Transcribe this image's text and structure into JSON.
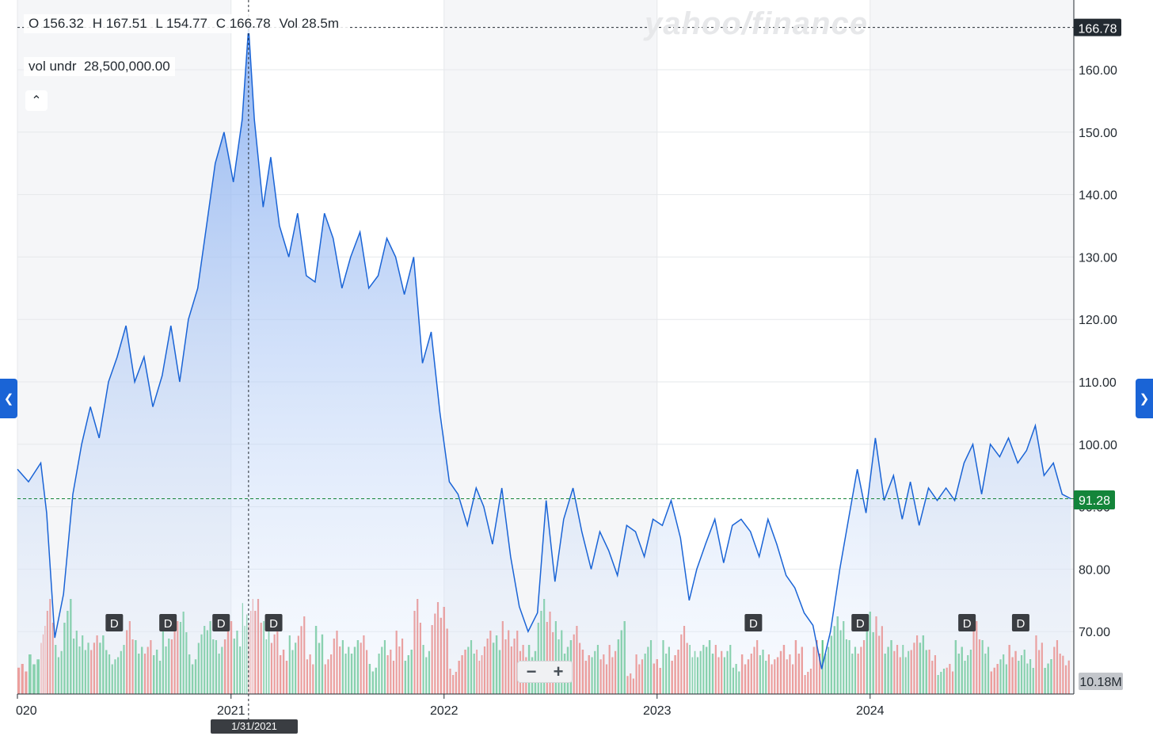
{
  "ohlc": {
    "open": "O 156.32",
    "high": "H 167.51",
    "low": "L 154.77",
    "close": "C 166.78",
    "volume": "Vol 28.5m"
  },
  "vol_indicator": {
    "label": "vol undr",
    "value": "28,500,000.00"
  },
  "collapse_icon": "chevron-up-icon",
  "watermark": "yahoo/finance",
  "nav": {
    "left_icon": "chevron-left-icon",
    "right_icon": "chevron-right-icon"
  },
  "zoom": {
    "minus": "−",
    "plus": "+"
  },
  "crosshair": {
    "date_label": "1/31/2021",
    "price_label": "166.78"
  },
  "colors": {
    "line": "#1a64d6",
    "up_volume": "#5ec48a",
    "down_volume": "#ee7a72",
    "current_price_badge": "#14853a",
    "crosshair_badge": "#232a31"
  },
  "chart_data": {
    "type": "area",
    "y_axis_ticks": [
      "70.00",
      "80.00",
      "90.00",
      "100.00",
      "110.00",
      "120.00",
      "130.00",
      "140.00",
      "150.00",
      "160.00"
    ],
    "ylim": [
      60,
      171
    ],
    "x_axis_ticks": [
      "020",
      "2021",
      "2022",
      "2023",
      "2024"
    ],
    "current_price": "91.28",
    "volume_label": "10.18M",
    "dividend_markers": [
      "D",
      "D",
      "D",
      "D",
      "D",
      "D",
      "D",
      "D"
    ],
    "dividend_dates": [
      "2020-06-15",
      "2020-09-15",
      "2020-12-15",
      "2021-03-15",
      "2023-06-15",
      "2023-12-15",
      "2024-06-15",
      "2024-09-15"
    ],
    "series": [
      {
        "dates": [
          "2020-01-01",
          "2020-01-20",
          "2020-02-10",
          "2020-02-20",
          "2020-03-05",
          "2020-03-20",
          "2020-04-05",
          "2020-04-20",
          "2020-05-05",
          "2020-05-20",
          "2020-06-05",
          "2020-06-20",
          "2020-07-05",
          "2020-07-20",
          "2020-08-05",
          "2020-08-20",
          "2020-09-05",
          "2020-09-20",
          "2020-10-05",
          "2020-10-20",
          "2020-11-05",
          "2020-11-20",
          "2020-12-05",
          "2020-12-20",
          "2021-01-05",
          "2021-01-20",
          "2021-01-31",
          "2021-02-10",
          "2021-02-25",
          "2021-03-10",
          "2021-03-25",
          "2021-04-10",
          "2021-04-25",
          "2021-05-10",
          "2021-05-25",
          "2021-06-10",
          "2021-06-25",
          "2021-07-10",
          "2021-07-25",
          "2021-08-10",
          "2021-08-25",
          "2021-09-10",
          "2021-09-25",
          "2021-10-10",
          "2021-10-25",
          "2021-11-10",
          "2021-11-25",
          "2021-12-10",
          "2021-12-25",
          "2022-01-10",
          "2022-01-25",
          "2022-02-10",
          "2022-02-25",
          "2022-03-10",
          "2022-03-25",
          "2022-04-10",
          "2022-04-25",
          "2022-05-10",
          "2022-05-25",
          "2022-06-10",
          "2022-06-25",
          "2022-07-10",
          "2022-07-25",
          "2022-08-10",
          "2022-08-25",
          "2022-09-10",
          "2022-09-25",
          "2022-10-10",
          "2022-10-25",
          "2022-11-10",
          "2022-11-25",
          "2022-12-10",
          "2022-12-25",
          "2023-01-10",
          "2023-01-25",
          "2023-02-10",
          "2023-02-25",
          "2023-03-10",
          "2023-03-25",
          "2023-04-10",
          "2023-04-25",
          "2023-05-10",
          "2023-05-25",
          "2023-06-10",
          "2023-06-25",
          "2023-07-10",
          "2023-07-25",
          "2023-08-10",
          "2023-08-25",
          "2023-09-10",
          "2023-09-25",
          "2023-10-10",
          "2023-10-25",
          "2023-11-10",
          "2023-11-25",
          "2023-12-10",
          "2023-12-25",
          "2024-01-10",
          "2024-01-25",
          "2024-02-10",
          "2024-02-25",
          "2024-03-10",
          "2024-03-25",
          "2024-04-10",
          "2024-04-25",
          "2024-05-10",
          "2024-05-25",
          "2024-06-10",
          "2024-06-25",
          "2024-07-10",
          "2024-07-25",
          "2024-08-10",
          "2024-08-25",
          "2024-09-10",
          "2024-09-25",
          "2024-10-10",
          "2024-10-25",
          "2024-11-10",
          "2024-11-25",
          "2024-12-10"
        ],
        "values": [
          96,
          94,
          97,
          89,
          69,
          76,
          92,
          100,
          106,
          101,
          110,
          114,
          119,
          110,
          114,
          106,
          111,
          119,
          110,
          120,
          125,
          135,
          145,
          150,
          142,
          152,
          166.8,
          152,
          138,
          146,
          135,
          130,
          137,
          127,
          126,
          137,
          133,
          125,
          130,
          134,
          125,
          127,
          133,
          130,
          124,
          130,
          113,
          118,
          105,
          94,
          92,
          87,
          93,
          90,
          84,
          93,
          82,
          74,
          70,
          73,
          91,
          78,
          88,
          93,
          86,
          80,
          86,
          83,
          79,
          87,
          86,
          82,
          88,
          87,
          91,
          85,
          75,
          80,
          84,
          88,
          81,
          87,
          88,
          86,
          82,
          88,
          84,
          79,
          77,
          73,
          71,
          64,
          70,
          80,
          88,
          96,
          89,
          101,
          91,
          95,
          88,
          94,
          87,
          93,
          91,
          93,
          91,
          97,
          100,
          92,
          100,
          98,
          101,
          97,
          99,
          103,
          95,
          97,
          92,
          91.28
        ]
      }
    ]
  }
}
